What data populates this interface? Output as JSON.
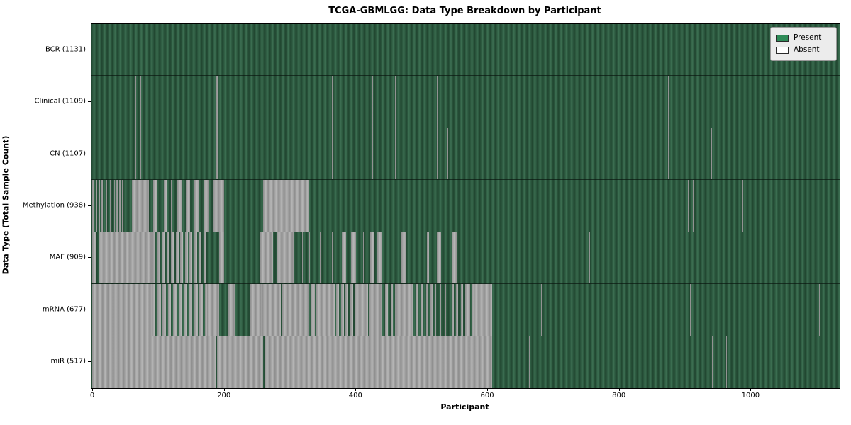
{
  "title": "TCGA-GBMLGG: Data Type Breakdown by Participant",
  "axes": {
    "xlabel": "Participant",
    "ylabel": "Data Type (Total Sample Count)"
  },
  "legend": {
    "items": [
      {
        "label": "Present",
        "color": "#2e8b57"
      },
      {
        "label": "Absent",
        "color": "#ffffff"
      }
    ]
  },
  "chart_data": {
    "type": "heatmap",
    "title": "TCGA-GBMLGG: Data Type Breakdown by Participant",
    "xlabel": "Participant",
    "ylabel": "Data Type (Total Sample Count)",
    "legend": [
      "Present",
      "Absent"
    ],
    "legend_position": "upper right",
    "grid": false,
    "x_max": 1131,
    "x_ticks": [
      0,
      200,
      400,
      600,
      800,
      1000
    ],
    "colors": {
      "present_legend": "#2e8b57",
      "absent_legend": "#ffffff",
      "present_render": "#2f5d43",
      "absent_render": "#a6a6a6"
    },
    "rows": [
      {
        "data_type": "BCR",
        "present_count": 1131,
        "label": "BCR (1131)",
        "absent_ranges": []
      },
      {
        "data_type": "Clinical",
        "present_count": 1109,
        "label": "Clinical (1109)",
        "absent_ranges": [
          [
            66,
            67
          ],
          [
            73,
            74
          ],
          [
            87,
            88
          ],
          [
            106,
            107
          ],
          [
            189,
            192
          ],
          [
            262,
            263
          ],
          [
            309,
            310
          ],
          [
            364,
            365
          ],
          [
            426,
            427
          ],
          [
            460,
            461
          ],
          [
            523,
            525
          ],
          [
            610,
            611
          ],
          [
            875,
            876
          ],
          [
            1012,
            1013
          ]
        ]
      },
      {
        "data_type": "CN",
        "present_count": 1107,
        "label": "CN (1107)",
        "absent_ranges": [
          [
            66,
            67
          ],
          [
            73,
            74
          ],
          [
            87,
            88
          ],
          [
            106,
            107
          ],
          [
            189,
            192
          ],
          [
            262,
            263
          ],
          [
            309,
            310
          ],
          [
            364,
            365
          ],
          [
            426,
            427
          ],
          [
            460,
            461
          ],
          [
            523,
            526
          ],
          [
            540,
            541
          ],
          [
            610,
            611
          ],
          [
            875,
            876
          ],
          [
            940,
            941
          ],
          [
            1012,
            1013
          ]
        ]
      },
      {
        "data_type": "Methylation",
        "present_count": 938,
        "label": "Methylation (938)",
        "absent_ranges": [
          [
            0,
            3
          ],
          [
            5,
            8
          ],
          [
            10,
            12
          ],
          [
            14,
            16
          ],
          [
            22,
            23
          ],
          [
            27,
            28
          ],
          [
            31,
            32
          ],
          [
            33,
            35
          ],
          [
            37,
            39
          ],
          [
            41,
            43
          ],
          [
            45,
            47
          ],
          [
            60,
            86
          ],
          [
            93,
            98
          ],
          [
            109,
            113
          ],
          [
            120,
            121
          ],
          [
            129,
            137
          ],
          [
            142,
            149
          ],
          [
            155,
            162
          ],
          [
            169,
            178
          ],
          [
            184,
            200
          ],
          [
            260,
            330
          ],
          [
            905,
            906
          ],
          [
            912,
            913
          ],
          [
            988,
            989
          ]
        ]
      },
      {
        "data_type": "MAF",
        "present_count": 909,
        "label": "MAF (909)",
        "absent_ranges": [
          [
            0,
            7
          ],
          [
            10,
            91
          ],
          [
            92,
            96
          ],
          [
            99,
            103
          ],
          [
            106,
            110
          ],
          [
            113,
            117
          ],
          [
            120,
            124
          ],
          [
            127,
            131
          ],
          [
            134,
            138
          ],
          [
            141,
            145
          ],
          [
            148,
            152
          ],
          [
            155,
            159
          ],
          [
            162,
            166
          ],
          [
            169,
            173
          ],
          [
            193,
            200
          ],
          [
            209,
            210
          ],
          [
            255,
            275
          ],
          [
            280,
            306
          ],
          [
            319,
            320
          ],
          [
            324,
            325
          ],
          [
            330,
            331
          ],
          [
            339,
            340
          ],
          [
            346,
            347
          ],
          [
            364,
            365
          ],
          [
            379,
            386
          ],
          [
            393,
            401
          ],
          [
            412,
            413
          ],
          [
            422,
            428
          ],
          [
            433,
            441
          ],
          [
            470,
            477
          ],
          [
            481,
            482
          ],
          [
            508,
            512
          ],
          [
            524,
            530
          ],
          [
            537,
            538
          ],
          [
            546,
            554
          ],
          [
            755,
            756
          ],
          [
            854,
            855
          ],
          [
            1043,
            1044
          ]
        ]
      },
      {
        "data_type": "mRNA",
        "present_count": 677,
        "label": "mRNA (677)",
        "absent_ranges": [
          [
            0,
            91
          ],
          [
            91,
            96
          ],
          [
            99,
            104
          ],
          [
            107,
            112
          ],
          [
            115,
            120
          ],
          [
            123,
            128
          ],
          [
            131,
            136
          ],
          [
            139,
            144
          ],
          [
            147,
            152
          ],
          [
            155,
            160
          ],
          [
            163,
            168
          ],
          [
            171,
            175
          ],
          [
            175,
            193
          ],
          [
            207,
            216
          ],
          [
            240,
            255
          ],
          [
            255,
            257
          ],
          [
            258,
            287
          ],
          [
            289,
            330
          ],
          [
            332,
            338
          ],
          [
            340,
            364
          ],
          [
            364,
            368
          ],
          [
            371,
            375
          ],
          [
            378,
            382
          ],
          [
            385,
            389
          ],
          [
            392,
            396
          ],
          [
            399,
            419
          ],
          [
            421,
            437
          ],
          [
            437,
            441
          ],
          [
            445,
            449
          ],
          [
            453,
            457
          ],
          [
            460,
            462
          ],
          [
            462,
            484
          ],
          [
            484,
            488
          ],
          [
            491,
            495
          ],
          [
            499,
            503
          ],
          [
            507,
            511
          ],
          [
            514,
            517
          ],
          [
            520,
            522
          ],
          [
            528,
            530
          ],
          [
            536,
            538
          ],
          [
            546,
            549
          ],
          [
            553,
            556
          ],
          [
            560,
            563
          ],
          [
            567,
            574
          ],
          [
            576,
            579
          ],
          [
            579,
            608
          ],
          [
            635,
            636
          ],
          [
            682,
            683
          ],
          [
            908,
            909
          ],
          [
            961,
            962
          ],
          [
            1017,
            1018
          ],
          [
            1104,
            1105
          ]
        ]
      },
      {
        "data_type": "miR",
        "present_count": 517,
        "label": "miR (517)",
        "absent_ranges": [
          [
            0,
            188
          ],
          [
            190,
            260
          ],
          [
            262,
            608
          ],
          [
            664,
            665
          ],
          [
            713,
            714
          ],
          [
            941,
            942
          ],
          [
            963,
            964
          ],
          [
            999,
            1000
          ],
          [
            1017,
            1018
          ]
        ]
      }
    ]
  }
}
